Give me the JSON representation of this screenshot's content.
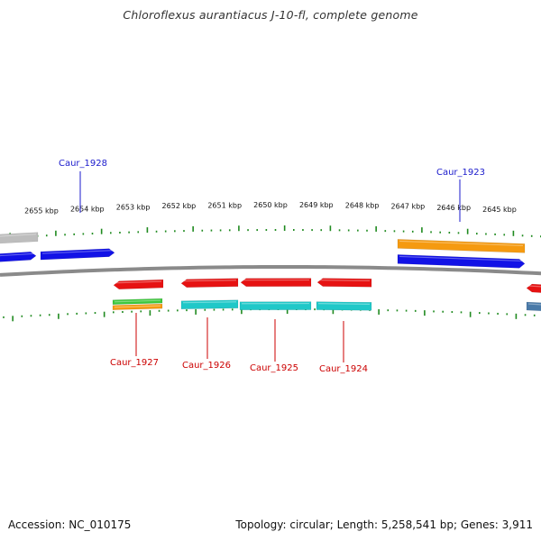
{
  "header": {
    "title": "Chloroflexus aurantiacus J-10-fl, complete genome"
  },
  "footer": {
    "accession": "Accession: NC_010175",
    "summary": "Topology: circular; Length: 5,258,541 bp; Genes: 3,911"
  },
  "ruler_labels": [
    "2655 kbp",
    "2654 kbp",
    "2653 kbp",
    "2652 kbp",
    "2651 kbp",
    "2650 kbp",
    "2649 kbp",
    "2648 kbp",
    "2647 kbp",
    "2646 kbp",
    "2645 kbp"
  ],
  "gene_labels": [
    {
      "name": "Caur_1928",
      "strand": "forward"
    },
    {
      "name": "Caur_1923",
      "strand": "forward"
    },
    {
      "name": "Caur_1927",
      "strand": "reverse"
    },
    {
      "name": "Caur_1926",
      "strand": "reverse"
    },
    {
      "name": "Caur_1925",
      "strand": "reverse"
    },
    {
      "name": "Caur_1924",
      "strand": "reverse"
    }
  ],
  "colors": {
    "forward_label": "#1a1acc",
    "reverse_label": "#cc0000",
    "forward_gene": "#1212e6",
    "reverse_gene": "#e61212",
    "cyan_feature": "#20c8c8",
    "orange_feature": "#f59a10",
    "green_feature": "#3cc83c",
    "gray_feature": "#bdbdbd",
    "steelblue_feature": "#4a7aa8",
    "backbone": "#8a8a8a",
    "ticks": "#1f8a1f"
  }
}
